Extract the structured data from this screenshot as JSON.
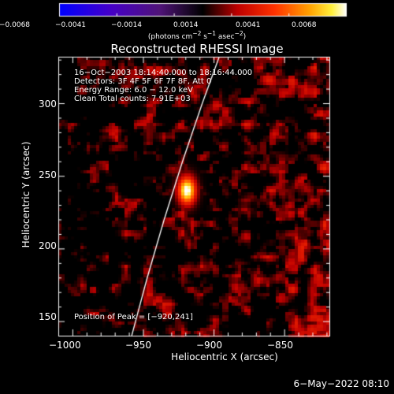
{
  "title": "Reconstructed RHESSI Image",
  "colorbar": {
    "tick_labels": [
      "−0.0068",
      "−0.0041",
      "−0.0014",
      "0.0014",
      "0.0041",
      "0.0068"
    ],
    "units_html": "(photons cm<sup>−2</sup> s<sup>−1</sup> asec<sup>−2</sup>)",
    "range": [
      -0.0068,
      0.0068
    ]
  },
  "info_lines": [
    "16−Oct−2003 18:14:40.000 to 18:16:44.000",
    "Detectors: 3F 4F 5F 6F 7F 8F, Att 0",
    "Energy Range: 6.0 − 12.0 keV",
    "Clean    Total counts: 7.91E+03"
  ],
  "peak_label": "Position of Peak = [−920,241]",
  "x_axis": {
    "label": "Heliocentric X (arcsec)",
    "ticks": [
      "−1000",
      "−950",
      "−900",
      "−850"
    ],
    "tick_values": [
      -1000,
      -950,
      -900,
      -850
    ],
    "range": [
      -1010,
      -818
    ]
  },
  "y_axis": {
    "label": "Heliocentric Y (arcsec)",
    "ticks": [
      "150",
      "200",
      "250",
      "300"
    ],
    "tick_values": [
      150,
      200,
      250,
      300
    ],
    "range": [
      140,
      332
    ]
  },
  "peak": {
    "x": -920,
    "y": 241
  },
  "footer_date": "6−May−2022 08:10"
}
